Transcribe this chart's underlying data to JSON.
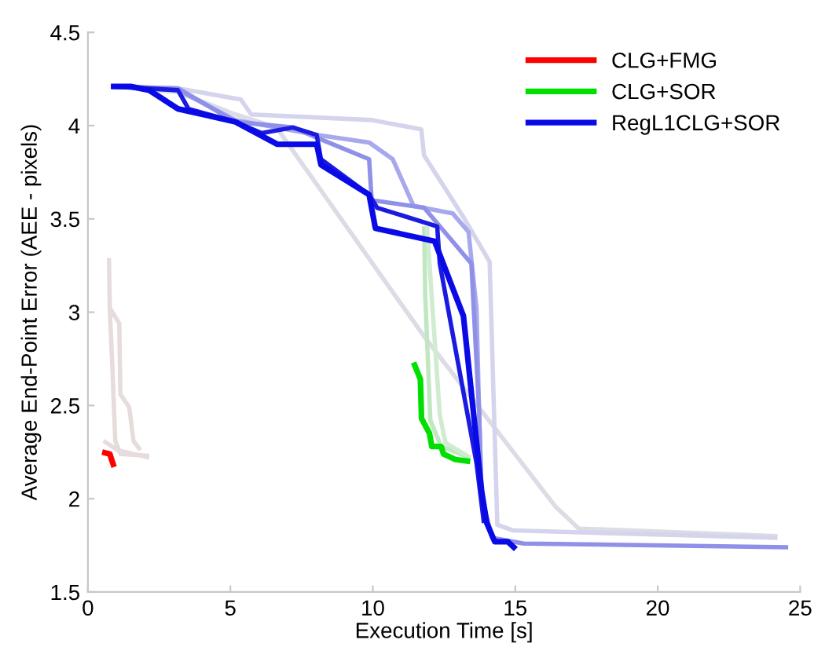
{
  "chart_data": {
    "type": "line",
    "xlabel": "Execution Time [s]",
    "ylabel": "Average End-Point Error (AEE - pixels)",
    "xlim": [
      0,
      25
    ],
    "ylim": [
      1.5,
      4.5
    ],
    "xticks": [
      0,
      5,
      10,
      15,
      20,
      25
    ],
    "yticks": [
      1.5,
      2,
      2.5,
      3,
      3.5,
      4,
      4.5
    ],
    "grid": false,
    "legend": "top right",
    "marker": "none",
    "series": [
      {
        "color": "#dcdce6",
        "x": [
          0.81,
          3.16,
          5.18,
          6.62,
          11.8,
          16.4,
          17.23,
          24.2
        ],
        "values": [
          4.21,
          4.18,
          4.06,
          3.99,
          2.87,
          1.96,
          1.84,
          1.8
        ]
      },
      {
        "color": "#d4d4ec",
        "x": [
          0.81,
          3.16,
          5.37,
          5.73,
          9.96,
          11.7,
          11.8,
          13.18,
          14.1,
          14.37,
          14.93,
          24.2
        ],
        "values": [
          4.21,
          4.2,
          4.14,
          4.06,
          4.03,
          3.98,
          3.84,
          3.51,
          3.27,
          1.86,
          1.83,
          1.79
        ]
      },
      {
        "color": "#a8a8ec",
        "x": [
          0.81,
          3.16,
          5.18,
          8.03,
          9.87,
          10.7,
          11.43,
          12.8,
          13.36,
          13.64,
          13.73,
          13.82,
          14.19
        ],
        "values": [
          4.21,
          4.19,
          4.03,
          3.95,
          3.91,
          3.82,
          3.57,
          3.53,
          3.43,
          3.02,
          2.47,
          2.0,
          1.79
        ]
      },
      {
        "color": "#8f90e8",
        "x": [
          0.81,
          3.16,
          5.18,
          7.2,
          8.12,
          9.87,
          9.96,
          11.8,
          13.46,
          13.73,
          13.82,
          14.19,
          15.3,
          24.58
        ],
        "values": [
          4.21,
          4.2,
          4.02,
          3.99,
          3.93,
          3.82,
          3.6,
          3.56,
          3.26,
          2.47,
          2.0,
          1.79,
          1.76,
          1.74
        ]
      },
      {
        "color": "#e6dcdc",
        "x": [
          0.74,
          0.77,
          0.86,
          0.96,
          1.14,
          2.15
        ],
        "values": [
          3.29,
          3.01,
          2.7,
          2.31,
          2.24,
          2.23
        ]
      },
      {
        "color": "#e6dcdc",
        "x": [
          0.74,
          1.1,
          1.14,
          1.45,
          1.6,
          1.84
        ],
        "values": [
          3.03,
          2.94,
          2.56,
          2.49,
          2.31,
          2.26
        ]
      },
      {
        "color": "#e6dcdc",
        "x": [
          0.55,
          1.05,
          2.15
        ],
        "values": [
          2.31,
          2.26,
          2.22
        ]
      },
      {
        "color": "#c0e8c0",
        "x": [
          11.8,
          11.84,
          12.02,
          12.4,
          13.42
        ],
        "values": [
          3.46,
          3.09,
          2.42,
          2.28,
          2.22
        ]
      },
      {
        "color": "#d0ecd0",
        "x": [
          11.9,
          12.35,
          12.55,
          13.42
        ],
        "values": [
          3.46,
          2.45,
          2.3,
          2.22
        ]
      },
      {
        "name": "CLG+FMG",
        "color": "#ff0000",
        "x": [
          0.5,
          0.77,
          0.83,
          0.92
        ],
        "values": [
          2.25,
          2.24,
          2.21,
          2.17
        ]
      },
      {
        "name": "CLG+SOR",
        "color": "#00e000",
        "x": [
          11.43,
          11.67,
          11.71,
          11.99,
          12.07,
          12.4,
          12.48,
          12.9,
          13.42
        ],
        "values": [
          2.73,
          2.64,
          2.43,
          2.35,
          2.28,
          2.28,
          2.24,
          2.21,
          2.2
        ]
      },
      {
        "color": "#1a1ae0",
        "x": [
          0.81,
          3.16,
          3.53,
          5.18,
          6.1,
          7.2,
          8.03,
          8.18,
          9.87,
          10.15,
          12.26,
          12.35,
          13.64,
          13.9
        ],
        "values": [
          4.21,
          4.19,
          4.09,
          4.02,
          3.96,
          3.99,
          3.95,
          3.82,
          3.63,
          3.56,
          3.46,
          3.26,
          2.19,
          1.87
        ]
      },
      {
        "name": "RegL1CLG+SOR",
        "color": "#0a0ae6",
        "x": [
          0.81,
          1.5,
          2.15,
          3.16,
          5.18,
          6.65,
          8.03,
          8.18,
          9.87,
          10.09,
          12.17,
          13.18,
          13.82,
          14.0,
          14.28,
          14.74,
          15.02
        ],
        "values": [
          4.21,
          4.21,
          4.19,
          4.09,
          4.02,
          3.9,
          3.9,
          3.79,
          3.63,
          3.45,
          3.38,
          2.98,
          2.04,
          1.87,
          1.77,
          1.77,
          1.73
        ]
      }
    ]
  }
}
